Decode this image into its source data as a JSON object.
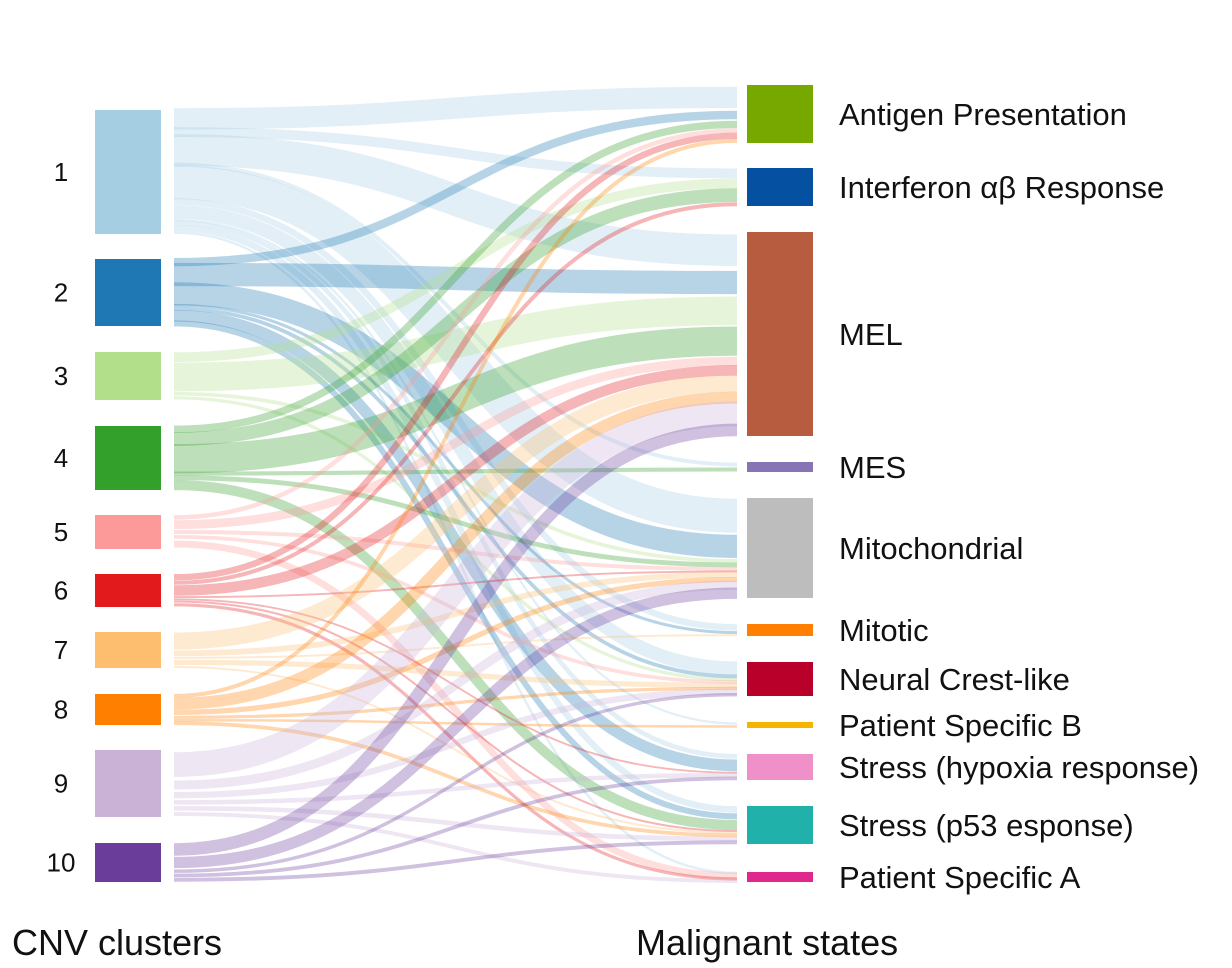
{
  "left_title": "CNV clusters",
  "right_title": "Malignant states",
  "clusters": [
    {
      "label": "1",
      "color": "#a6cee3"
    },
    {
      "label": "2",
      "color": "#1f78b4"
    },
    {
      "label": "3",
      "color": "#b2df8a"
    },
    {
      "label": "4",
      "color": "#33a02c"
    },
    {
      "label": "5",
      "color": "#fb9a99"
    },
    {
      "label": "6",
      "color": "#e31a1c"
    },
    {
      "label": "7",
      "color": "#fdbf6f"
    },
    {
      "label": "8",
      "color": "#ff7f00"
    },
    {
      "label": "9",
      "color": "#cab2d6"
    },
    {
      "label": "10",
      "color": "#6a3d9a"
    }
  ],
  "states": [
    {
      "label": "Antigen Presentation",
      "color": "#77a800"
    },
    {
      "label": "Interferon αβ Response",
      "color": "#0550a0"
    },
    {
      "label": "MEL",
      "color": "#b85c40"
    },
    {
      "label": "MES",
      "color": "#8674b4"
    },
    {
      "label": "Mitochondrial",
      "color": "#bdbdbd"
    },
    {
      "label": "Mitotic",
      "color": "#ff7f00"
    },
    {
      "label": "Neural Crest-like",
      "color": "#b8002a"
    },
    {
      "label": "Patient Specific B",
      "color": "#f5b400"
    },
    {
      "label": "Stress (hypoxia response)",
      "color": "#f090c8"
    },
    {
      "label": "Stress (p53 esponse)",
      "color": "#20b2aa"
    },
    {
      "label": "Patient Specific A",
      "color": "#e0288c"
    }
  ],
  "flows": [
    {
      "from": "1",
      "to": "Antigen Presentation",
      "value": 12
    },
    {
      "from": "1",
      "to": "Interferon αβ Response",
      "value": 6
    },
    {
      "from": "1",
      "to": "MEL",
      "value": 18
    },
    {
      "from": "1",
      "to": "MES",
      "value": 2
    },
    {
      "from": "1",
      "to": "Mitochondrial",
      "value": 22
    },
    {
      "from": "1",
      "to": "Mitotic",
      "value": 4
    },
    {
      "from": "1",
      "to": "Neural Crest-like",
      "value": 10
    },
    {
      "from": "1",
      "to": "Patient Specific B",
      "value": 1
    },
    {
      "from": "1",
      "to": "Stress (hypoxia response)",
      "value": 3
    },
    {
      "from": "1",
      "to": "Stress (p53 esponse)",
      "value": 4
    },
    {
      "from": "1",
      "to": "Patient Specific A",
      "value": 2
    },
    {
      "from": "2",
      "to": "Antigen Presentation",
      "value": 5
    },
    {
      "from": "2",
      "to": "MEL",
      "value": 14
    },
    {
      "from": "2",
      "to": "Mitochondrial",
      "value": 16
    },
    {
      "from": "2",
      "to": "Mitotic",
      "value": 2
    },
    {
      "from": "2",
      "to": "Neural Crest-like",
      "value": 3
    },
    {
      "from": "2",
      "to": "Stress (hypoxia response)",
      "value": 8
    },
    {
      "from": "2",
      "to": "Stress (p53 esponse)",
      "value": 4
    },
    {
      "from": "3",
      "to": "Interferon αβ Response",
      "value": 5
    },
    {
      "from": "3",
      "to": "MEL",
      "value": 14
    },
    {
      "from": "3",
      "to": "Mitochondrial",
      "value": 2
    },
    {
      "from": "3",
      "to": "Neural Crest-like",
      "value": 2
    },
    {
      "from": "4",
      "to": "Antigen Presentation",
      "value": 4
    },
    {
      "from": "4",
      "to": "Interferon αβ Response",
      "value": 8
    },
    {
      "from": "4",
      "to": "MEL",
      "value": 16
    },
    {
      "from": "4",
      "to": "MES",
      "value": 2
    },
    {
      "from": "4",
      "to": "Mitochondrial",
      "value": 3
    },
    {
      "from": "4",
      "to": "Stress (p53 esponse)",
      "value": 6
    },
    {
      "from": "5",
      "to": "Antigen Presentation",
      "value": 2
    },
    {
      "from": "5",
      "to": "MEL",
      "value": 4
    },
    {
      "from": "5",
      "to": "Mitochondrial",
      "value": 2
    },
    {
      "from": "5",
      "to": "Neural Crest-like",
      "value": 2
    },
    {
      "from": "5",
      "to": "Patient Specific A",
      "value": 4
    },
    {
      "from": "6",
      "to": "Antigen Presentation",
      "value": 3
    },
    {
      "from": "6",
      "to": "Interferon αβ Response",
      "value": 2
    },
    {
      "from": "6",
      "to": "MEL",
      "value": 5
    },
    {
      "from": "6",
      "to": "Mitochondrial",
      "value": 1
    },
    {
      "from": "6",
      "to": "Stress (hypoxia response)",
      "value": 1
    },
    {
      "from": "6",
      "to": "Stress (p53 esponse)",
      "value": 1
    },
    {
      "from": "6",
      "to": "Patient Specific A",
      "value": 2
    },
    {
      "from": "7",
      "to": "MEL",
      "value": 8
    },
    {
      "from": "7",
      "to": "Mitochondrial",
      "value": 3
    },
    {
      "from": "7",
      "to": "Mitotic",
      "value": 1
    },
    {
      "from": "7",
      "to": "Neural Crest-like",
      "value": 3
    },
    {
      "from": "7",
      "to": "Stress (p53 esponse)",
      "value": 1
    },
    {
      "from": "8",
      "to": "Antigen Presentation",
      "value": 2
    },
    {
      "from": "8",
      "to": "MEL",
      "value": 6
    },
    {
      "from": "8",
      "to": "Mitochondrial",
      "value": 3
    },
    {
      "from": "8",
      "to": "Neural Crest-like",
      "value": 2
    },
    {
      "from": "8",
      "to": "Patient Specific B",
      "value": 1
    },
    {
      "from": "8",
      "to": "Stress (p53 esponse)",
      "value": 2
    },
    {
      "from": "9",
      "to": "MEL",
      "value": 10
    },
    {
      "from": "9",
      "to": "Mitochondrial",
      "value": 4
    },
    {
      "from": "9",
      "to": "Neural Crest-like",
      "value": 3
    },
    {
      "from": "9",
      "to": "Stress (hypoxia response)",
      "value": 2
    },
    {
      "from": "9",
      "to": "Stress (p53 esponse)",
      "value": 2
    },
    {
      "from": "9",
      "to": "Patient Specific A",
      "value": 2
    },
    {
      "from": "10",
      "to": "MEL",
      "value": 6
    },
    {
      "from": "10",
      "to": "Mitochondrial",
      "value": 6
    },
    {
      "from": "10",
      "to": "Neural Crest-like",
      "value": 2
    },
    {
      "from": "10",
      "to": "Stress (hypoxia response)",
      "value": 2
    },
    {
      "from": "10",
      "to": "Stress (p53 esponse)",
      "value": 2
    }
  ]
}
